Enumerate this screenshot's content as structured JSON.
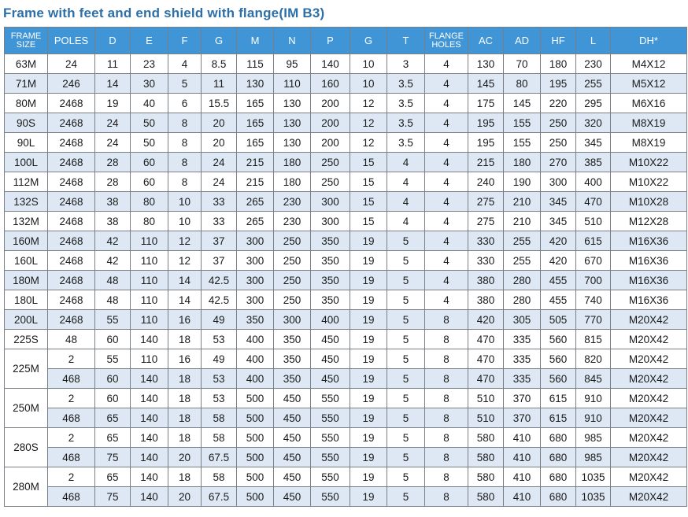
{
  "title": "Frame with feet and end shield with flange(IM B3)",
  "headers": [
    "FRAME SIZE",
    "POLES",
    "D",
    "E",
    "F",
    "G",
    "M",
    "N",
    "P",
    "G",
    "T",
    "FLANGE HOLES",
    "AC",
    "AD",
    "HF",
    "L",
    "DH*"
  ],
  "rows": [
    {
      "frame": "63M",
      "span": 1,
      "cells": [
        "24",
        "11",
        "23",
        "4",
        "8.5",
        "115",
        "95",
        "140",
        "10",
        "3",
        "4",
        "130",
        "70",
        "180",
        "230",
        "M4X12"
      ]
    },
    {
      "frame": "71M",
      "span": 1,
      "cells": [
        "246",
        "14",
        "30",
        "5",
        "11",
        "130",
        "110",
        "160",
        "10",
        "3.5",
        "4",
        "145",
        "80",
        "195",
        "255",
        "M5X12"
      ]
    },
    {
      "frame": "80M",
      "span": 1,
      "cells": [
        "2468",
        "19",
        "40",
        "6",
        "15.5",
        "165",
        "130",
        "200",
        "12",
        "3.5",
        "4",
        "175",
        "145",
        "220",
        "295",
        "M6X16"
      ]
    },
    {
      "frame": "90S",
      "span": 1,
      "cells": [
        "2468",
        "24",
        "50",
        "8",
        "20",
        "165",
        "130",
        "200",
        "12",
        "3.5",
        "4",
        "195",
        "155",
        "250",
        "320",
        "M8X19"
      ]
    },
    {
      "frame": "90L",
      "span": 1,
      "cells": [
        "2468",
        "24",
        "50",
        "8",
        "20",
        "165",
        "130",
        "200",
        "12",
        "3.5",
        "4",
        "195",
        "155",
        "250",
        "345",
        "M8X19"
      ]
    },
    {
      "frame": "100L",
      "span": 1,
      "cells": [
        "2468",
        "28",
        "60",
        "8",
        "24",
        "215",
        "180",
        "250",
        "15",
        "4",
        "4",
        "215",
        "180",
        "270",
        "385",
        "M10X22"
      ]
    },
    {
      "frame": "112M",
      "span": 1,
      "cells": [
        "2468",
        "28",
        "60",
        "8",
        "24",
        "215",
        "180",
        "250",
        "15",
        "4",
        "4",
        "240",
        "190",
        "300",
        "400",
        "M10X22"
      ]
    },
    {
      "frame": "132S",
      "span": 1,
      "cells": [
        "2468",
        "38",
        "80",
        "10",
        "33",
        "265",
        "230",
        "300",
        "15",
        "4",
        "4",
        "275",
        "210",
        "345",
        "470",
        "M10X28"
      ]
    },
    {
      "frame": "132M",
      "span": 1,
      "cells": [
        "2468",
        "38",
        "80",
        "10",
        "33",
        "265",
        "230",
        "300",
        "15",
        "4",
        "4",
        "275",
        "210",
        "345",
        "510",
        "M12X28"
      ]
    },
    {
      "frame": "160M",
      "span": 1,
      "cells": [
        "2468",
        "42",
        "110",
        "12",
        "37",
        "300",
        "250",
        "350",
        "19",
        "5",
        "4",
        "330",
        "255",
        "420",
        "615",
        "M16X36"
      ]
    },
    {
      "frame": "160L",
      "span": 1,
      "cells": [
        "2468",
        "42",
        "110",
        "12",
        "37",
        "300",
        "250",
        "350",
        "19",
        "5",
        "4",
        "330",
        "255",
        "420",
        "670",
        "M16X36"
      ]
    },
    {
      "frame": "180M",
      "span": 1,
      "cells": [
        "2468",
        "48",
        "110",
        "14",
        "42.5",
        "300",
        "250",
        "350",
        "19",
        "5",
        "4",
        "380",
        "280",
        "455",
        "700",
        "M16X36"
      ]
    },
    {
      "frame": "180L",
      "span": 1,
      "cells": [
        "2468",
        "48",
        "110",
        "14",
        "42.5",
        "300",
        "250",
        "350",
        "19",
        "5",
        "4",
        "380",
        "280",
        "455",
        "740",
        "M16X36"
      ]
    },
    {
      "frame": "200L",
      "span": 1,
      "cells": [
        "2468",
        "55",
        "110",
        "16",
        "49",
        "350",
        "300",
        "400",
        "19",
        "5",
        "8",
        "420",
        "305",
        "505",
        "770",
        "M20X42"
      ]
    },
    {
      "frame": "225S",
      "span": 1,
      "cells": [
        "48",
        "60",
        "140",
        "18",
        "53",
        "400",
        "350",
        "450",
        "19",
        "5",
        "8",
        "470",
        "335",
        "560",
        "815",
        "M20X42"
      ]
    },
    {
      "frame": "225M",
      "span": 2,
      "cells": [
        "2",
        "55",
        "110",
        "16",
        "49",
        "400",
        "350",
        "450",
        "19",
        "5",
        "8",
        "470",
        "335",
        "560",
        "820",
        "M20X42"
      ]
    },
    {
      "frame": "",
      "span": 0,
      "cells": [
        "468",
        "60",
        "140",
        "18",
        "53",
        "400",
        "350",
        "450",
        "19",
        "5",
        "8",
        "470",
        "335",
        "560",
        "845",
        "M20X42"
      ]
    },
    {
      "frame": "250M",
      "span": 2,
      "cells": [
        "2",
        "60",
        "140",
        "18",
        "53",
        "500",
        "450",
        "550",
        "19",
        "5",
        "8",
        "510",
        "370",
        "615",
        "910",
        "M20X42"
      ]
    },
    {
      "frame": "",
      "span": 0,
      "cells": [
        "468",
        "65",
        "140",
        "18",
        "58",
        "500",
        "450",
        "550",
        "19",
        "5",
        "8",
        "510",
        "370",
        "615",
        "910",
        "M20X42"
      ]
    },
    {
      "frame": "280S",
      "span": 2,
      "cells": [
        "2",
        "65",
        "140",
        "18",
        "58",
        "500",
        "450",
        "550",
        "19",
        "5",
        "8",
        "580",
        "410",
        "680",
        "985",
        "M20X42"
      ]
    },
    {
      "frame": "",
      "span": 0,
      "cells": [
        "468",
        "75",
        "140",
        "20",
        "67.5",
        "500",
        "450",
        "550",
        "19",
        "5",
        "8",
        "580",
        "410",
        "680",
        "985",
        "M20X42"
      ]
    },
    {
      "frame": "280M",
      "span": 2,
      "cells": [
        "2",
        "65",
        "140",
        "18",
        "58",
        "500",
        "450",
        "550",
        "19",
        "5",
        "8",
        "580",
        "410",
        "680",
        "1035",
        "M20X42"
      ]
    },
    {
      "frame": "",
      "span": 0,
      "cells": [
        "468",
        "75",
        "140",
        "20",
        "67.5",
        "500",
        "450",
        "550",
        "19",
        "5",
        "8",
        "580",
        "410",
        "680",
        "1035",
        "M20X42"
      ]
    }
  ],
  "colors": {
    "title": "#2d6fa8",
    "header_bg": "#3f95d6",
    "header_text": "#ffffff",
    "alt_row_bg": "#dde8f4",
    "border": "#7a7f86"
  }
}
